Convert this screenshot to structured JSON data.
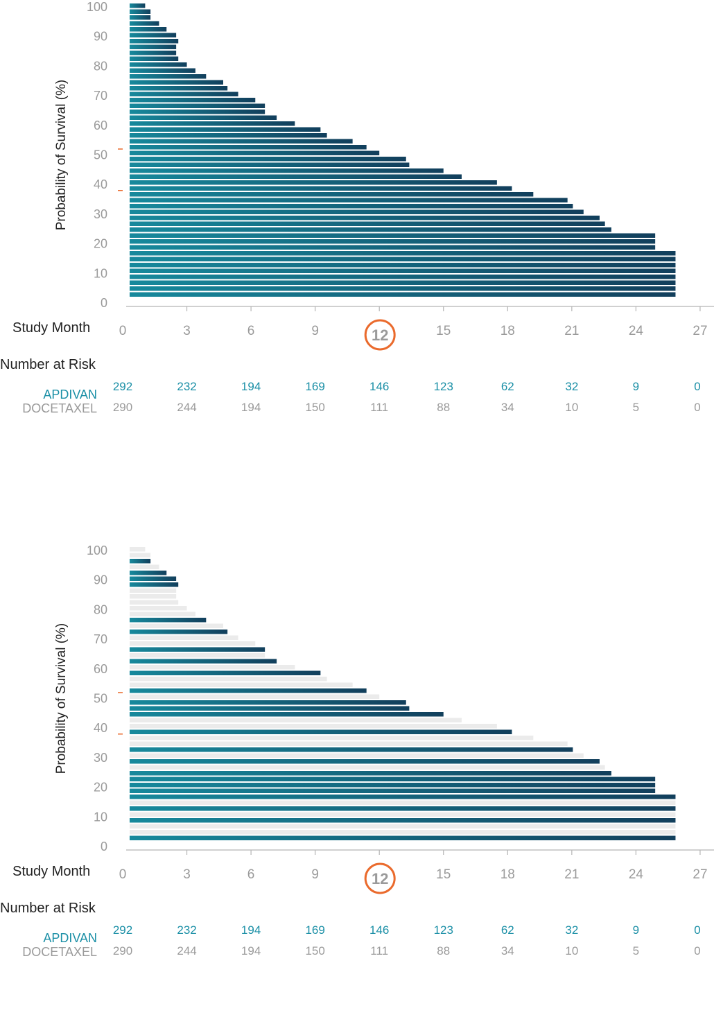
{
  "colors": {
    "bar_start": "#17899c",
    "bar_end": "#123f5c",
    "faded_bar": "#ebebeb",
    "axis": "#b5b5b5",
    "highlight": "#ea6a2c",
    "apdivan": "#1a8fa6",
    "docetaxel": "#9a9a9a"
  },
  "chart_data": [
    {
      "type": "bar",
      "orientation": "horizontal",
      "ylabel": "Probability of Survival (%)",
      "xlabel": "Study Month",
      "xlim": [
        0,
        27
      ],
      "ylim": [
        0,
        100
      ],
      "x_ticks": [
        "0",
        "3",
        "6",
        "9",
        "12",
        "15",
        "18",
        "21",
        "24",
        "27"
      ],
      "y_ticks": [
        "0",
        "10",
        "20",
        "30",
        "40",
        "50",
        "60",
        "70",
        "80",
        "90",
        "100"
      ],
      "highlighted_tick": "12",
      "y_markers": [
        52,
        38
      ],
      "grid": false,
      "bar_ends_months": [
        1.05,
        1.3,
        1.3,
        1.7,
        2.05,
        2.5,
        2.6,
        2.5,
        2.5,
        2.6,
        3.0,
        3.4,
        3.9,
        4.7,
        4.9,
        5.4,
        6.2,
        6.65,
        6.65,
        7.2,
        8.05,
        9.25,
        9.55,
        10.75,
        11.4,
        12.0,
        13.25,
        13.4,
        15.0,
        15.85,
        17.5,
        18.2,
        19.2,
        20.8,
        21.05,
        21.55,
        22.3,
        22.55,
        22.85,
        24.9,
        24.9,
        24.9,
        25.85,
        25.85,
        25.85,
        25.85,
        25.85,
        25.85,
        25.85,
        25.85
      ],
      "faded_bars": []
    },
    {
      "type": "bar",
      "orientation": "horizontal",
      "ylabel": "Probability of Survival (%)",
      "xlabel": "Study Month",
      "xlim": [
        0,
        27
      ],
      "ylim": [
        0,
        100
      ],
      "x_ticks": [
        "0",
        "3",
        "6",
        "9",
        "12",
        "15",
        "18",
        "21",
        "24",
        "27"
      ],
      "y_ticks": [
        "0",
        "10",
        "20",
        "30",
        "40",
        "50",
        "60",
        "70",
        "80",
        "90",
        "100"
      ],
      "highlighted_tick": "12",
      "y_markers": [
        52,
        38
      ],
      "grid": false,
      "bar_ends_months": [
        1.05,
        1.3,
        1.3,
        1.7,
        2.05,
        2.5,
        2.6,
        2.5,
        2.5,
        2.6,
        3.0,
        3.4,
        3.9,
        4.7,
        4.9,
        5.4,
        6.2,
        6.65,
        6.65,
        7.2,
        8.05,
        9.25,
        9.55,
        10.75,
        11.4,
        12.0,
        13.25,
        13.4,
        15.0,
        15.85,
        17.5,
        18.2,
        19.2,
        20.8,
        21.05,
        21.55,
        22.3,
        22.55,
        22.85,
        24.9,
        24.9,
        24.9,
        25.85,
        25.85,
        25.85,
        25.85,
        25.85,
        25.85,
        25.85,
        25.85
      ],
      "faded_bars": [
        0,
        1,
        3,
        7,
        8,
        9,
        10,
        11,
        13,
        15,
        16,
        18,
        20,
        22,
        23,
        25,
        29,
        30,
        32,
        33,
        35,
        37,
        43,
        45,
        47,
        48
      ]
    }
  ],
  "panels": [
    {
      "study_month_label": "Study Month",
      "number_at_risk_label": "Number at Risk",
      "series_a_name": "APDIVAN",
      "series_b_name": "DOCETAXEL",
      "risk_apdivan": [
        "292",
        "232",
        "194",
        "169",
        "146",
        "123",
        "62",
        "32",
        "9",
        "0"
      ],
      "risk_docetaxel": [
        "290",
        "244",
        "194",
        "150",
        "111",
        "88",
        "34",
        "10",
        "5",
        "0"
      ]
    },
    {
      "study_month_label": "Study Month",
      "number_at_risk_label": "Number at Risk",
      "series_a_name": "APDIVAN",
      "series_b_name": "DOCETAXEL",
      "risk_apdivan": [
        "292",
        "232",
        "194",
        "169",
        "146",
        "123",
        "62",
        "32",
        "9",
        "0"
      ],
      "risk_docetaxel": [
        "290",
        "244",
        "194",
        "150",
        "111",
        "88",
        "34",
        "10",
        "5",
        "0"
      ]
    }
  ]
}
